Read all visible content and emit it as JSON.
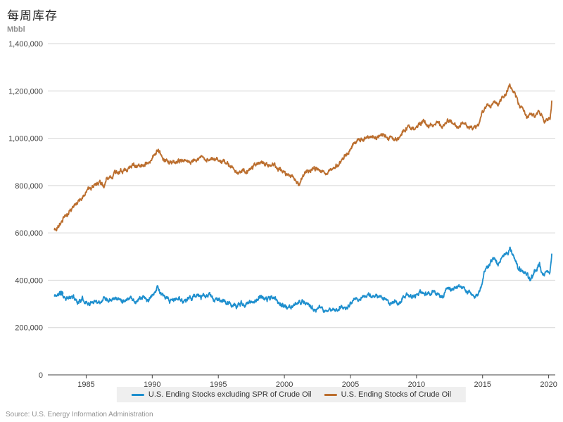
{
  "title": "每周库存",
  "unit_label": "Mbbl",
  "source": "Source: U.S. Energy Information Administration",
  "colors": {
    "series_excl_spr": "#1E8FCE",
    "series_total": "#BB6E2E",
    "grid": "#d6d6d6",
    "axis": "#404040",
    "legend_bg": "#efefef",
    "muted_text": "#919191"
  },
  "legend": {
    "items": [
      {
        "label": "U.S. Ending Stocks excluding SPR of Crude Oil"
      },
      {
        "label": "U.S. Ending Stocks of Crude Oil"
      }
    ]
  },
  "chart_data": {
    "type": "line",
    "title": "每周库存",
    "ylabel": "Mbbl",
    "xlabel": "",
    "frequency": "weekly",
    "grid": "horizontal",
    "legend_position": "bottom",
    "xlim": [
      1982.1,
      2020.5
    ],
    "ylim": [
      0,
      1400000
    ],
    "x_ticks": [
      1985,
      1990,
      1995,
      2000,
      2005,
      2010,
      2015,
      2020
    ],
    "y_ticks": [
      0,
      200000,
      400000,
      600000,
      800000,
      1000000,
      1200000,
      1400000
    ],
    "y_tick_labels": [
      "0",
      "200,000",
      "400,000",
      "600,000",
      "800,000",
      "1,000,000",
      "1,200,000",
      "1,400,000"
    ],
    "marker_point": {
      "series": "U.S. Ending Stocks excluding SPR of Crude Oil",
      "x": 1983.1,
      "y": 345000
    },
    "series": [
      {
        "name": "U.S. Ending Stocks excluding SPR of Crude Oil",
        "color": "#1E8FCE",
        "noise_amp": 12000,
        "anchors": [
          [
            1982.6,
            333000
          ],
          [
            1982.85,
            338000
          ],
          [
            1983.1,
            345000
          ],
          [
            1983.4,
            328000
          ],
          [
            1983.7,
            322000
          ],
          [
            1984.0,
            332000
          ],
          [
            1984.35,
            308000
          ],
          [
            1984.7,
            320000
          ],
          [
            1985.0,
            308000
          ],
          [
            1985.3,
            298000
          ],
          [
            1985.65,
            315000
          ],
          [
            1986.0,
            308000
          ],
          [
            1986.35,
            328000
          ],
          [
            1986.7,
            318000
          ],
          [
            1987.0,
            328000
          ],
          [
            1987.35,
            322000
          ],
          [
            1987.7,
            315000
          ],
          [
            1988.0,
            318000
          ],
          [
            1988.35,
            330000
          ],
          [
            1988.7,
            308000
          ],
          [
            1989.0,
            322000
          ],
          [
            1989.35,
            328000
          ],
          [
            1989.7,
            312000
          ],
          [
            1990.0,
            332000
          ],
          [
            1990.4,
            373000
          ],
          [
            1990.7,
            338000
          ],
          [
            1991.0,
            323000
          ],
          [
            1991.35,
            312000
          ],
          [
            1991.7,
            318000
          ],
          [
            1992.0,
            322000
          ],
          [
            1992.35,
            312000
          ],
          [
            1992.7,
            322000
          ],
          [
            1993.0,
            330000
          ],
          [
            1993.35,
            335000
          ],
          [
            1993.7,
            328000
          ],
          [
            1994.0,
            332000
          ],
          [
            1994.35,
            337000
          ],
          [
            1994.7,
            318000
          ],
          [
            1995.0,
            318000
          ],
          [
            1995.35,
            310000
          ],
          [
            1995.7,
            302000
          ],
          [
            1996.0,
            298000
          ],
          [
            1996.35,
            288000
          ],
          [
            1996.7,
            302000
          ],
          [
            1997.0,
            298000
          ],
          [
            1997.35,
            305000
          ],
          [
            1997.7,
            312000
          ],
          [
            1998.0,
            322000
          ],
          [
            1998.35,
            330000
          ],
          [
            1998.7,
            318000
          ],
          [
            1999.0,
            330000
          ],
          [
            1999.35,
            318000
          ],
          [
            1999.7,
            300000
          ],
          [
            2000.0,
            288000
          ],
          [
            2000.35,
            282000
          ],
          [
            2000.7,
            292000
          ],
          [
            2001.0,
            302000
          ],
          [
            2001.35,
            312000
          ],
          [
            2001.7,
            305000
          ],
          [
            2002.0,
            288000
          ],
          [
            2002.35,
            272000
          ],
          [
            2002.7,
            282000
          ],
          [
            2003.0,
            268000
          ],
          [
            2003.35,
            278000
          ],
          [
            2003.7,
            272000
          ],
          [
            2004.0,
            278000
          ],
          [
            2004.35,
            288000
          ],
          [
            2004.7,
            282000
          ],
          [
            2005.0,
            298000
          ],
          [
            2005.35,
            315000
          ],
          [
            2005.7,
            322000
          ],
          [
            2006.0,
            330000
          ],
          [
            2006.35,
            340000
          ],
          [
            2006.7,
            328000
          ],
          [
            2007.0,
            332000
          ],
          [
            2007.35,
            328000
          ],
          [
            2007.7,
            318000
          ],
          [
            2008.0,
            298000
          ],
          [
            2008.35,
            308000
          ],
          [
            2008.7,
            302000
          ],
          [
            2009.0,
            328000
          ],
          [
            2009.35,
            342000
          ],
          [
            2009.7,
            330000
          ],
          [
            2010.0,
            338000
          ],
          [
            2010.35,
            352000
          ],
          [
            2010.7,
            340000
          ],
          [
            2011.0,
            348000
          ],
          [
            2011.35,
            352000
          ],
          [
            2011.7,
            332000
          ],
          [
            2012.0,
            330000
          ],
          [
            2012.35,
            362000
          ],
          [
            2012.7,
            358000
          ],
          [
            2013.0,
            372000
          ],
          [
            2013.35,
            378000
          ],
          [
            2013.7,
            352000
          ],
          [
            2014.0,
            352000
          ],
          [
            2014.3,
            330000
          ],
          [
            2014.6,
            342000
          ],
          [
            2014.9,
            372000
          ],
          [
            2015.1,
            432000
          ],
          [
            2015.35,
            455000
          ],
          [
            2015.6,
            475000
          ],
          [
            2015.9,
            498000
          ],
          [
            2016.15,
            465000
          ],
          [
            2016.5,
            498000
          ],
          [
            2016.8,
            508000
          ],
          [
            2017.1,
            536000
          ],
          [
            2017.4,
            492000
          ],
          [
            2017.7,
            452000
          ],
          [
            2018.0,
            442000
          ],
          [
            2018.3,
            425000
          ],
          [
            2018.6,
            398000
          ],
          [
            2018.9,
            428000
          ],
          [
            2019.1,
            445000
          ],
          [
            2019.3,
            468000
          ],
          [
            2019.55,
            420000
          ],
          [
            2019.75,
            428000
          ],
          [
            2019.95,
            438000
          ],
          [
            2020.1,
            428000
          ],
          [
            2020.25,
            520000
          ]
        ]
      },
      {
        "name": "U.S. Ending Stocks of Crude Oil",
        "color": "#BB6E2E",
        "noise_amp": 12000,
        "anchors": [
          [
            1982.6,
            615000
          ],
          [
            1982.75,
            618000
          ],
          [
            1983.0,
            640000
          ],
          [
            1983.3,
            665000
          ],
          [
            1983.6,
            680000
          ],
          [
            1984.0,
            710000
          ],
          [
            1984.4,
            730000
          ],
          [
            1984.8,
            758000
          ],
          [
            1985.2,
            790000
          ],
          [
            1985.6,
            805000
          ],
          [
            1986.0,
            815000
          ],
          [
            1986.3,
            800000
          ],
          [
            1986.6,
            830000
          ],
          [
            1987.0,
            845000
          ],
          [
            1987.4,
            855000
          ],
          [
            1987.8,
            862000
          ],
          [
            1988.2,
            875000
          ],
          [
            1988.6,
            888000
          ],
          [
            1989.0,
            878000
          ],
          [
            1989.4,
            892000
          ],
          [
            1989.8,
            900000
          ],
          [
            1990.1,
            925000
          ],
          [
            1990.45,
            953000
          ],
          [
            1990.7,
            920000
          ],
          [
            1991.0,
            903000
          ],
          [
            1991.4,
            893000
          ],
          [
            1991.8,
            898000
          ],
          [
            1992.2,
            908000
          ],
          [
            1992.6,
            912000
          ],
          [
            1993.0,
            898000
          ],
          [
            1993.4,
            912000
          ],
          [
            1993.8,
            918000
          ],
          [
            1994.2,
            905000
          ],
          [
            1994.6,
            912000
          ],
          [
            1995.0,
            908000
          ],
          [
            1995.4,
            902000
          ],
          [
            1995.8,
            890000
          ],
          [
            1996.2,
            868000
          ],
          [
            1996.5,
            850000
          ],
          [
            1996.8,
            862000
          ],
          [
            1997.2,
            858000
          ],
          [
            1997.6,
            878000
          ],
          [
            1998.0,
            888000
          ],
          [
            1998.4,
            895000
          ],
          [
            1998.8,
            885000
          ],
          [
            1999.2,
            893000
          ],
          [
            1999.6,
            868000
          ],
          [
            2000.0,
            855000
          ],
          [
            2000.4,
            842000
          ],
          [
            2000.8,
            828000
          ],
          [
            2001.1,
            806000
          ],
          [
            2001.5,
            848000
          ],
          [
            2001.9,
            862000
          ],
          [
            2002.3,
            872000
          ],
          [
            2002.7,
            865000
          ],
          [
            2003.1,
            850000
          ],
          [
            2003.5,
            868000
          ],
          [
            2003.9,
            882000
          ],
          [
            2004.3,
            900000
          ],
          [
            2004.7,
            932000
          ],
          [
            2005.0,
            958000
          ],
          [
            2005.4,
            985000
          ],
          [
            2005.8,
            992000
          ],
          [
            2006.2,
            1000000
          ],
          [
            2006.6,
            1012000
          ],
          [
            2007.0,
            1003000
          ],
          [
            2007.4,
            1018000
          ],
          [
            2007.8,
            1008000
          ],
          [
            2008.2,
            988000
          ],
          [
            2008.6,
            998000
          ],
          [
            2009.0,
            1030000
          ],
          [
            2009.4,
            1048000
          ],
          [
            2009.8,
            1040000
          ],
          [
            2010.2,
            1058000
          ],
          [
            2010.5,
            1075000
          ],
          [
            2010.8,
            1052000
          ],
          [
            2011.2,
            1055000
          ],
          [
            2011.6,
            1068000
          ],
          [
            2012.0,
            1052000
          ],
          [
            2012.4,
            1075000
          ],
          [
            2012.8,
            1068000
          ],
          [
            2013.1,
            1042000
          ],
          [
            2013.5,
            1068000
          ],
          [
            2013.9,
            1048000
          ],
          [
            2014.3,
            1038000
          ],
          [
            2014.7,
            1058000
          ],
          [
            2015.0,
            1108000
          ],
          [
            2015.3,
            1142000
          ],
          [
            2015.6,
            1128000
          ],
          [
            2015.9,
            1158000
          ],
          [
            2016.15,
            1140000
          ],
          [
            2016.5,
            1178000
          ],
          [
            2016.8,
            1192000
          ],
          [
            2017.1,
            1223000
          ],
          [
            2017.4,
            1192000
          ],
          [
            2017.7,
            1152000
          ],
          [
            2018.0,
            1122000
          ],
          [
            2018.4,
            1088000
          ],
          [
            2018.7,
            1105000
          ],
          [
            2019.0,
            1090000
          ],
          [
            2019.25,
            1122000
          ],
          [
            2019.5,
            1098000
          ],
          [
            2019.7,
            1072000
          ],
          [
            2019.95,
            1085000
          ],
          [
            2020.1,
            1082000
          ],
          [
            2020.25,
            1158000
          ]
        ]
      }
    ]
  }
}
